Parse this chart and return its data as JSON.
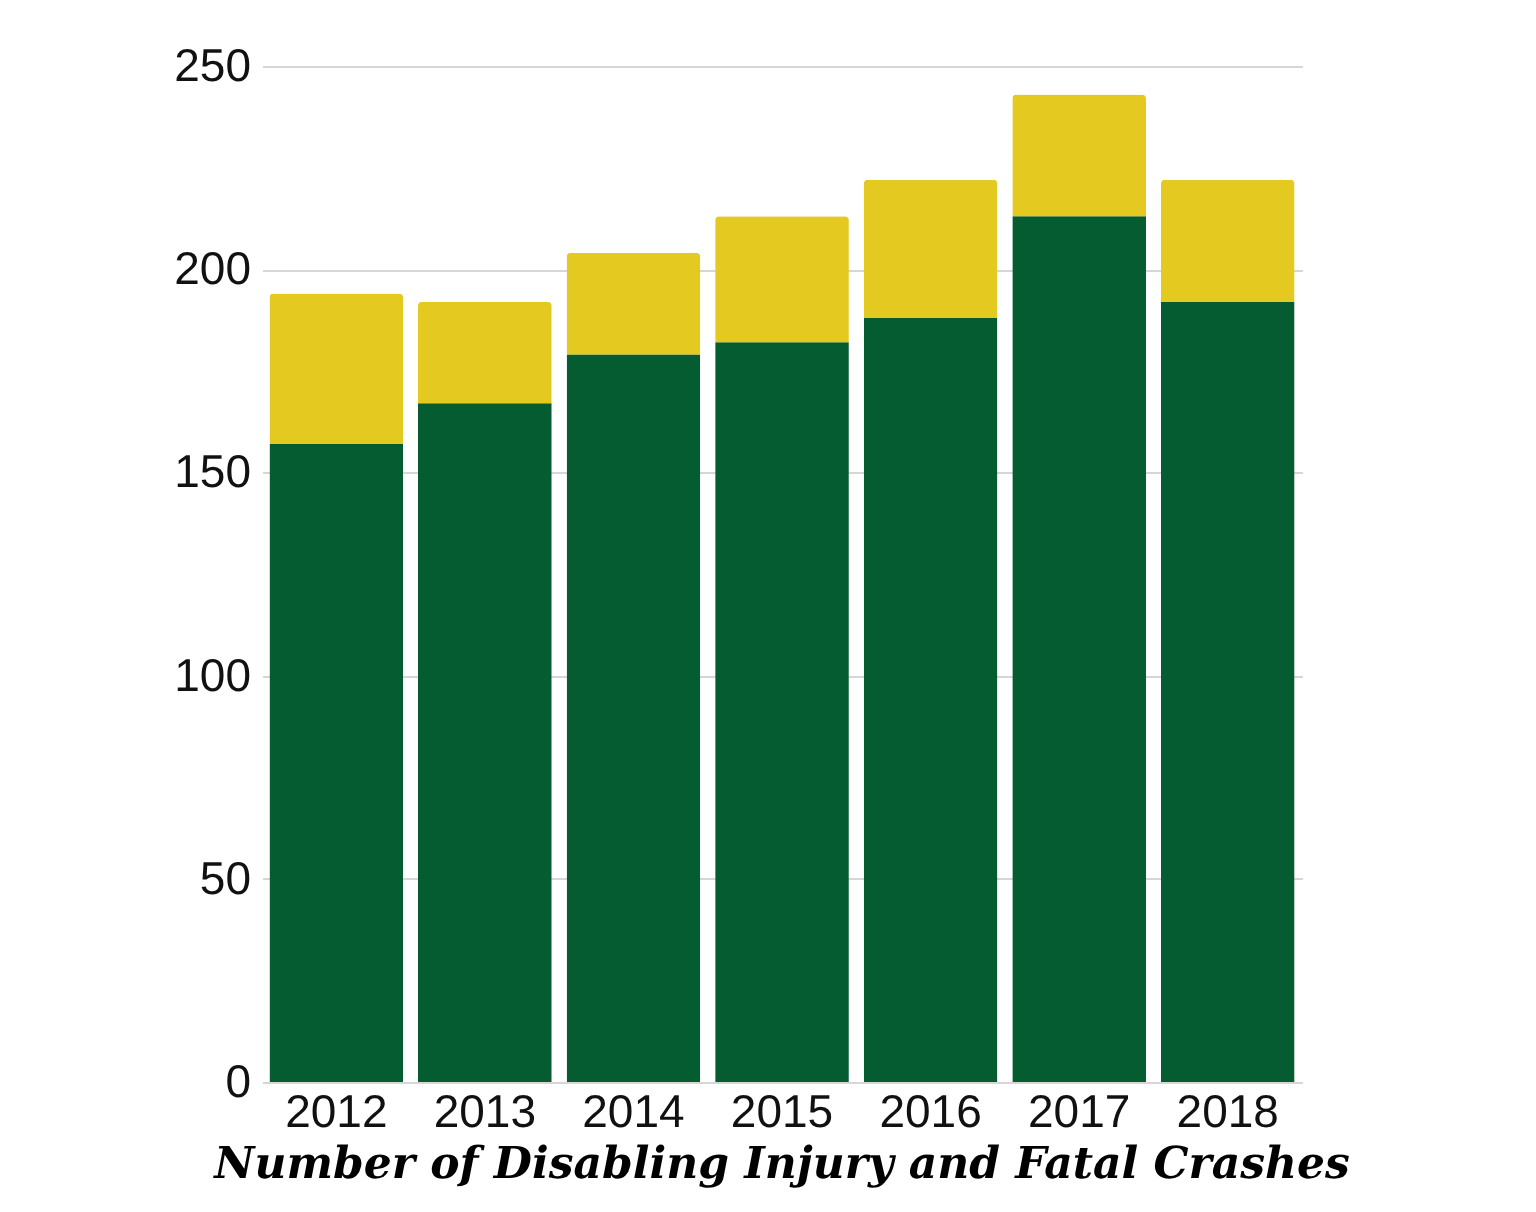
{
  "chart_data": {
    "type": "bar",
    "title": "Number of Disabling Injury and Fatal Crashes",
    "categories": [
      "2012",
      "2013",
      "2014",
      "2015",
      "2016",
      "2017",
      "2018"
    ],
    "stacked": true,
    "series": [
      {
        "color": "#055c30",
        "values": [
          157,
          167,
          179,
          182,
          188,
          213,
          192
        ]
      },
      {
        "color": "#e3c920",
        "values": [
          37,
          25,
          25,
          31,
          34,
          30,
          30
        ]
      }
    ],
    "ylim": [
      0,
      250
    ],
    "yticks": [
      0,
      50,
      100,
      150,
      200,
      250
    ],
    "grid": "y"
  }
}
